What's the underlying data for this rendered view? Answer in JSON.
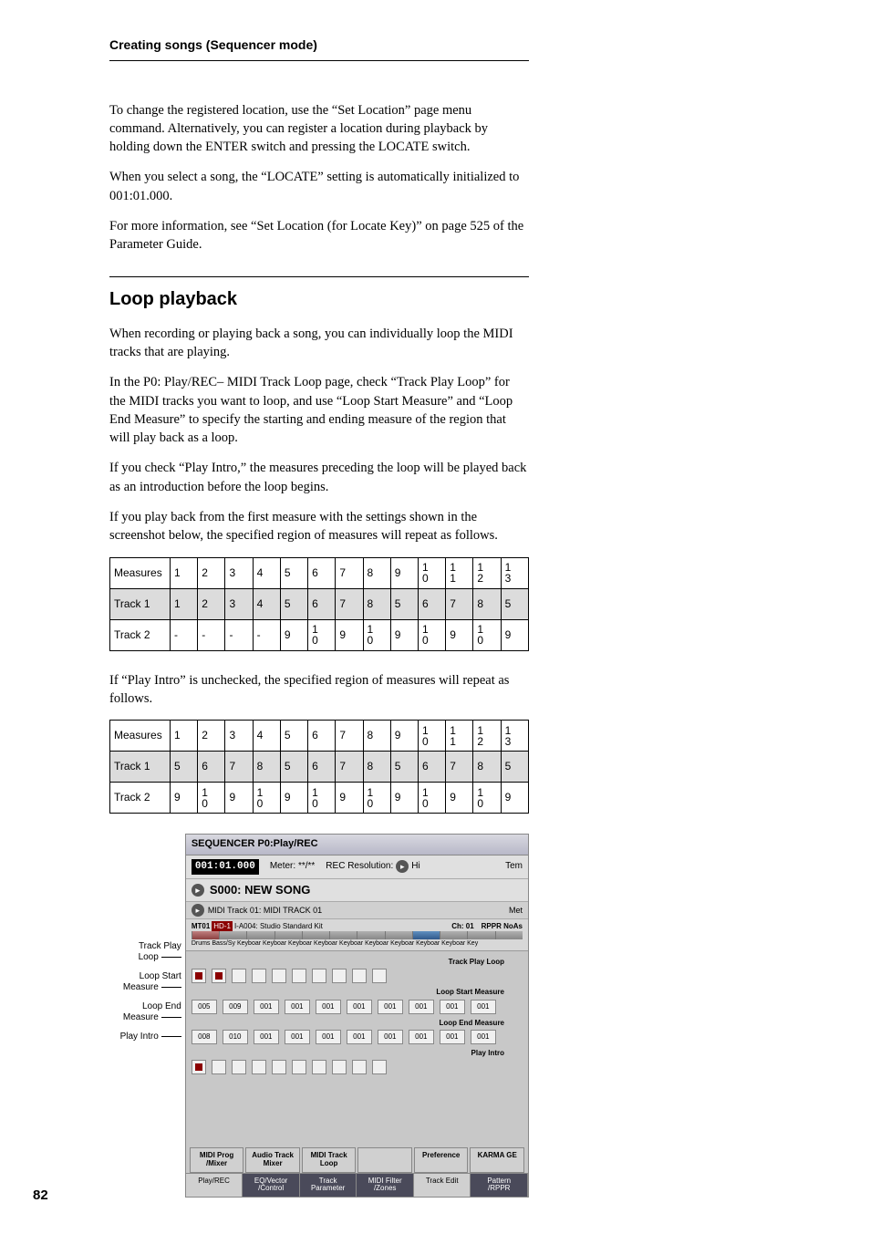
{
  "page": {
    "running_head": "Creating songs (Sequencer mode)",
    "page_number": "82"
  },
  "text": {
    "p1": "To change the registered location, use the “Set Location” page menu command. Alternatively, you can register a location during playback by holding down the ENTER switch and pressing the LOCATE switch.",
    "p2": "When you select a song, the “LOCATE” setting is automatically initialized to 001:01.000.",
    "p3": "For more information, see “Set Location (for Locate Key)” on page 525 of the Parameter Guide.",
    "h_loop": "Loop playback",
    "p4": "When recording or playing back a song, you can individually loop the MIDI tracks that are playing.",
    "p5": "In the P0: Play/REC– MIDI Track Loop page, check “Track Play Loop” for the MIDI tracks you want to loop, and use “Loop Start Measure” and “Loop End Measure” to specify the starting and ending measure of the region that will play back as a loop.",
    "p6": "If you check “Play Intro,” the measures preceding the loop will be played back as an introduction before the loop begins.",
    "p7": "If you play back from the first measure with the settings shown in the screenshot below, the specified region of measures will repeat as follows.",
    "p8": "If “Play Intro” is unchecked, the specified region of measures will repeat as follows."
  },
  "table1": {
    "rows": [
      {
        "label": "Measures",
        "cells": [
          "1",
          "2",
          "3",
          "4",
          "5",
          "6",
          "7",
          "8",
          "9",
          "10",
          "11",
          "12",
          "13"
        ]
      },
      {
        "label": "Track 1",
        "cells": [
          "1",
          "2",
          "3",
          "4",
          "5",
          "6",
          "7",
          "8",
          "5",
          "6",
          "7",
          "8",
          "5"
        ],
        "shaded": true
      },
      {
        "label": "Track 2",
        "cells": [
          "-",
          "-",
          "-",
          "-",
          "9",
          "10",
          "9",
          "10",
          "9",
          "10",
          "9",
          "10",
          "9"
        ]
      }
    ]
  },
  "table2": {
    "rows": [
      {
        "label": "Measures",
        "cells": [
          "1",
          "2",
          "3",
          "4",
          "5",
          "6",
          "7",
          "8",
          "9",
          "10",
          "11",
          "12",
          "13"
        ]
      },
      {
        "label": "Track 1",
        "cells": [
          "5",
          "6",
          "7",
          "8",
          "5",
          "6",
          "7",
          "8",
          "5",
          "6",
          "7",
          "8",
          "5"
        ],
        "shaded": true
      },
      {
        "label": "Track 2",
        "cells": [
          "9",
          "10",
          "9",
          "10",
          "9",
          "10",
          "9",
          "10",
          "9",
          "10",
          "9",
          "10",
          "9"
        ]
      }
    ]
  },
  "labels": {
    "track_play_loop": "Track Play\nLoop",
    "loop_start": "Loop Start\nMeasure",
    "loop_end": "Loop End\nMeasure",
    "play_intro": "Play Intro"
  },
  "shot": {
    "title": "SEQUENCER P0:Play/REC",
    "timestamp": "001:01.000",
    "meter": "Meter: **/**",
    "rec_res": "REC Resolution:",
    "rec_res_val": "Hi",
    "temp": "Tem",
    "song": "S000: NEW SONG",
    "midi_track_label": "MIDI Track 01: MIDI TRACK 01",
    "met": "Met",
    "mt": "MT01",
    "progbank": "HD-1",
    "prog": "I-A004: Studio Standard Kit",
    "ch": "Ch: 01",
    "rppr": "RPPR  NoAs",
    "catrow": "Drums   Bass/Sy Keyboar Keyboar Keyboar Keyboar Keyboar Keyboar Keyboar Keyboar Keyboar Key",
    "section_tpl": "Track Play Loop",
    "section_lsm": "Loop Start Measure",
    "section_lem": "Loop End Measure",
    "section_pi": "Play Intro",
    "loop_start_vals": [
      "005",
      "009",
      "001",
      "001",
      "001",
      "001",
      "001",
      "001",
      "001",
      "001"
    ],
    "loop_end_vals": [
      "008",
      "010",
      "001",
      "001",
      "001",
      "001",
      "001",
      "001",
      "001",
      "001"
    ],
    "tabs1": [
      "MIDI Prog\n/Mixer",
      "Audio Track\nMixer",
      "MIDI Track\nLoop",
      "",
      "Preference",
      "KARMA GE"
    ],
    "tabs2": [
      "Play/REC",
      "EQ/Vector\n/Control",
      "Track\nParameter",
      "MIDI Filter\n/Zones",
      "Track Edit",
      "Pattern\n/RPPR"
    ]
  }
}
